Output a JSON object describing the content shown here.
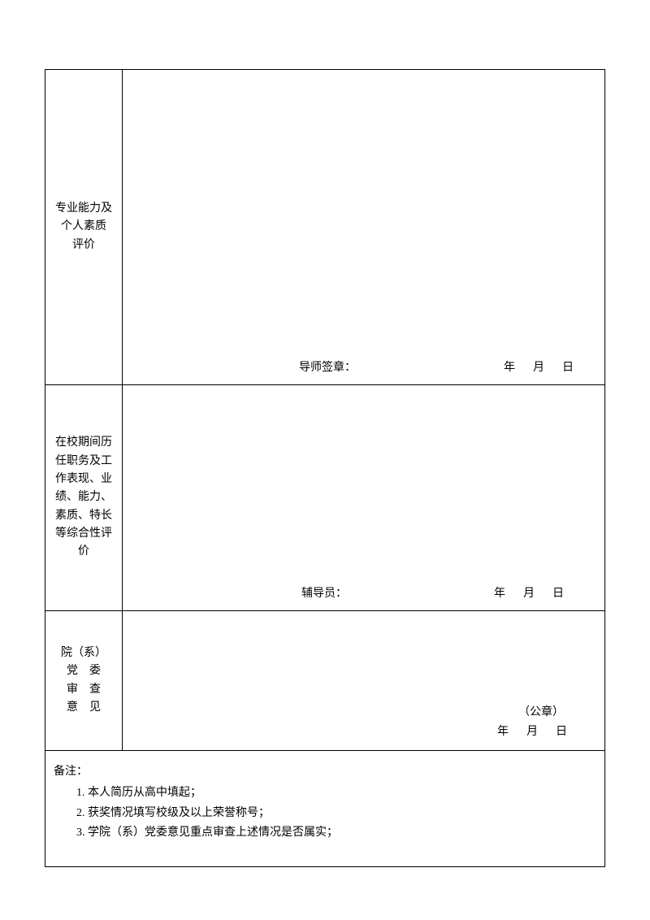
{
  "rows": [
    {
      "label_lines": [
        "专业能力及",
        "个人素质",
        "评价"
      ],
      "signature_label": "导师签章：",
      "date_year": "年",
      "date_month": "月",
      "date_day": "日"
    },
    {
      "label_lines": [
        "在校期间历",
        "任职务及工",
        "作表现、业",
        "绩、能力、",
        "素质、特长",
        "等综合性评",
        "价"
      ],
      "signature_label": "辅导员：",
      "date_year": "年",
      "date_month": "月",
      "date_day": "日"
    },
    {
      "label_lines_spaced": [
        "院（系）",
        "党　委",
        "审　查",
        "意　见"
      ],
      "stamp_label": "（公章）",
      "date_year": "年",
      "date_month": "月",
      "date_day": "日"
    }
  ],
  "notes": {
    "title": "备注：",
    "items": [
      "1. 本人简历从高中填起；",
      "2. 获奖情况填写校级及以上荣誉称号；",
      "3. 学院（系）党委意见重点审查上述情况是否属实；"
    ]
  },
  "style": {
    "border_color": "#000000",
    "background_color": "#ffffff",
    "text_color": "#000000",
    "font_size_pt": 10.5
  }
}
